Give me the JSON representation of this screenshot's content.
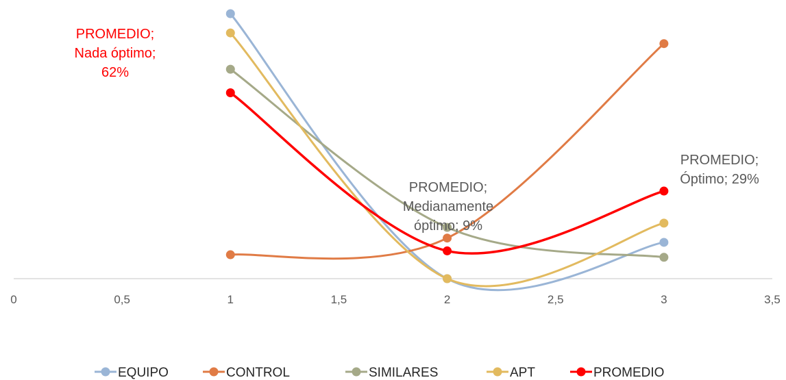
{
  "chart_data": {
    "type": "line",
    "title": "",
    "xlabel": "",
    "ylabel": "",
    "xlim": [
      0,
      3.5
    ],
    "ylim": [
      0,
      0.62
    ],
    "x_ticks": [
      "0",
      "0,5",
      "1",
      "1,5",
      "2",
      "2,5",
      "3",
      "3,5"
    ],
    "x_tick_values": [
      0,
      0.5,
      1,
      1.5,
      2,
      2.5,
      3,
      3.5
    ],
    "smooth": true,
    "gridlines": false,
    "legend_position": "bottom",
    "series": [
      {
        "name": "EQUIPO",
        "color": "#9ab5d6",
        "x": [
          1,
          2,
          3
        ],
        "y": [
          0.62,
          0.0,
          0.085
        ]
      },
      {
        "name": "CONTROL",
        "color": "#e07b45",
        "x": [
          1,
          2,
          3
        ],
        "y": [
          0.056,
          0.095,
          0.55
        ]
      },
      {
        "name": "SIMILARES",
        "color": "#a5a988",
        "x": [
          1,
          2,
          3
        ],
        "y": [
          0.49,
          0.12,
          0.05
        ]
      },
      {
        "name": "APT",
        "color": "#e2ba5f",
        "x": [
          1,
          2,
          3
        ],
        "y": [
          0.575,
          0.0,
          0.13
        ]
      },
      {
        "name": "PROMEDIO",
        "color": "#ff0000",
        "x": [
          1,
          2,
          3
        ],
        "y": [
          0.435,
          0.065,
          0.205
        ]
      }
    ],
    "annotations": [
      {
        "lines": [
          "PROMEDIO;",
          "Nada óptimo;",
          "62%"
        ],
        "color": "#ff0000"
      },
      {
        "lines": [
          "PROMEDIO;",
          "Medianamente",
          "óptimo; 9%"
        ],
        "color": "#595959"
      },
      {
        "lines": [
          "PROMEDIO;",
          "Óptimo; 29%"
        ],
        "color": "#595959"
      }
    ]
  }
}
